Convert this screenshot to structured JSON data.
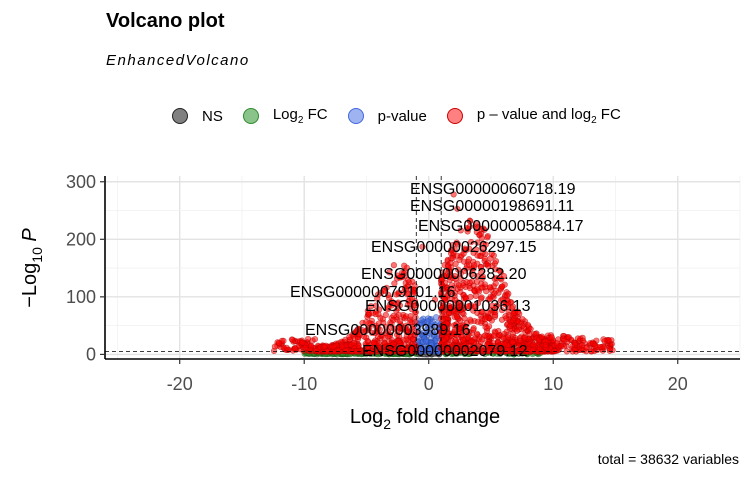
{
  "chart_data": {
    "type": "scatter",
    "title": "Volcano plot",
    "subtitle": "EnhancedVolcano",
    "xlabel": "Log2 fold change",
    "ylabel": "-Log10 P",
    "xlim": [
      -26,
      25
    ],
    "ylim": [
      -8,
      310
    ],
    "xticks": [
      -20,
      -10,
      0,
      10,
      20
    ],
    "yticks": [
      0,
      100,
      200,
      300
    ],
    "cutoffs": {
      "log2fc": [
        -1,
        1
      ],
      "neg_log10_p": 5
    },
    "grid": true,
    "legend_position": "top",
    "legend": [
      {
        "key": "ns",
        "label": "NS",
        "color": "#808080"
      },
      {
        "key": "fc",
        "label": "Log",
        "sub": "2",
        "after": " FC",
        "color": "#2e8b2e"
      },
      {
        "key": "p",
        "label": "p-value",
        "color": "#4169e1"
      },
      {
        "key": "both",
        "label": "p – value and log",
        "sub": "2",
        "after": " FC",
        "color": "#ff0000"
      }
    ],
    "labelled_genes": [
      {
        "name": "ENSG00000060718.19",
        "x": 2.0,
        "y": 278
      },
      {
        "name": "ENSG00000198691.11",
        "x": 2.3,
        "y": 253
      },
      {
        "name": "ENSG00000005884.17",
        "x": 3.3,
        "y": 222
      },
      {
        "name": "ENSG00000026297.15",
        "x": -0.5,
        "y": 187
      },
      {
        "name": "ENSG00000006282.20",
        "x": -2.5,
        "y": 137
      },
      {
        "name": "ENSG00000079101.16",
        "x": -2.0,
        "y": 108
      },
      {
        "name": "ENSG00000001036.13",
        "x": 0.5,
        "y": 95
      },
      {
        "name": "ENSG00000003989.16",
        "x": -2.5,
        "y": 40
      },
      {
        "name": "ENSG00000002079.12",
        "x": -3.0,
        "y": 5
      }
    ],
    "total_variables": 38632
  },
  "caption": "total = 38632 variables"
}
